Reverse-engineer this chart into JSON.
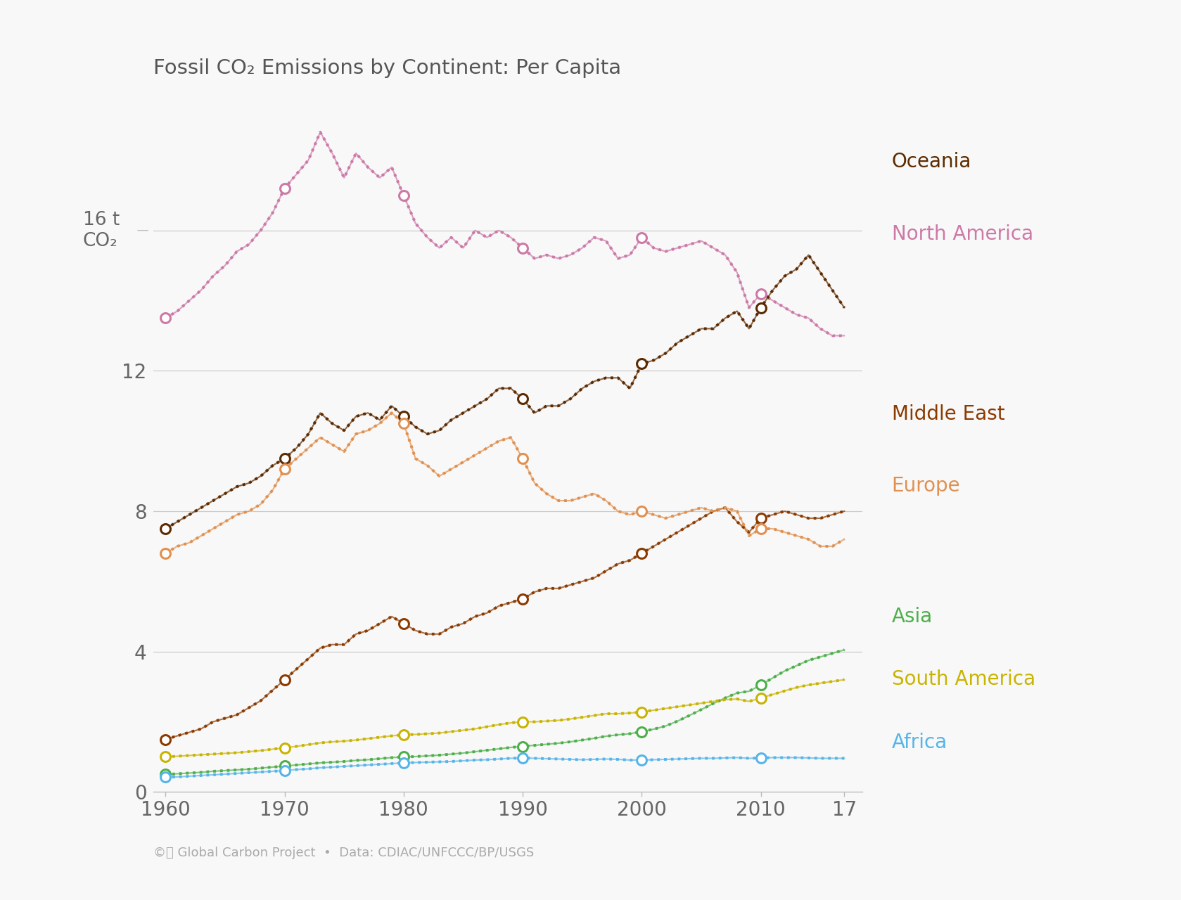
{
  "title": "Fossil CO₂ Emissions by Continent: Per Capita",
  "source": "©ⓘ Global Carbon Project  •  Data: CDIAC/UNFCCC/BP/USGS",
  "years": [
    1960,
    1961,
    1962,
    1963,
    1964,
    1965,
    1966,
    1967,
    1968,
    1969,
    1970,
    1971,
    1972,
    1973,
    1974,
    1975,
    1976,
    1977,
    1978,
    1979,
    1980,
    1981,
    1982,
    1983,
    1984,
    1985,
    1986,
    1987,
    1988,
    1989,
    1990,
    1991,
    1992,
    1993,
    1994,
    1995,
    1996,
    1997,
    1998,
    1999,
    2000,
    2001,
    2002,
    2003,
    2004,
    2005,
    2006,
    2007,
    2008,
    2009,
    2010,
    2011,
    2012,
    2013,
    2014,
    2015,
    2016,
    2017
  ],
  "series": {
    "North America": {
      "color": "#cc79a7",
      "values": [
        13.5,
        13.7,
        14.0,
        14.3,
        14.7,
        15.0,
        15.4,
        15.6,
        16.0,
        16.5,
        17.2,
        17.6,
        18.0,
        18.8,
        18.2,
        17.5,
        18.2,
        17.8,
        17.5,
        17.8,
        17.0,
        16.2,
        15.8,
        15.5,
        15.8,
        15.5,
        16.0,
        15.8,
        16.0,
        15.8,
        15.5,
        15.2,
        15.3,
        15.2,
        15.3,
        15.5,
        15.8,
        15.7,
        15.2,
        15.3,
        15.8,
        15.5,
        15.4,
        15.5,
        15.6,
        15.7,
        15.5,
        15.3,
        14.8,
        13.8,
        14.2,
        14.0,
        13.8,
        13.6,
        13.5,
        13.2,
        13.0,
        13.0
      ]
    },
    "Oceania": {
      "color": "#5c2a00",
      "values": [
        7.5,
        7.7,
        7.9,
        8.1,
        8.3,
        8.5,
        8.7,
        8.8,
        9.0,
        9.3,
        9.5,
        9.8,
        10.2,
        10.8,
        10.5,
        10.3,
        10.7,
        10.8,
        10.6,
        11.0,
        10.7,
        10.4,
        10.2,
        10.3,
        10.6,
        10.8,
        11.0,
        11.2,
        11.5,
        11.5,
        11.2,
        10.8,
        11.0,
        11.0,
        11.2,
        11.5,
        11.7,
        11.8,
        11.8,
        11.5,
        12.2,
        12.3,
        12.5,
        12.8,
        13.0,
        13.2,
        13.2,
        13.5,
        13.7,
        13.2,
        13.8,
        14.3,
        14.7,
        14.9,
        15.3,
        14.8,
        14.3,
        13.8
      ]
    },
    "Middle East": {
      "color": "#8B3A00",
      "values": [
        1.5,
        1.6,
        1.7,
        1.8,
        2.0,
        2.1,
        2.2,
        2.4,
        2.6,
        2.9,
        3.2,
        3.5,
        3.8,
        4.1,
        4.2,
        4.2,
        4.5,
        4.6,
        4.8,
        5.0,
        4.8,
        4.6,
        4.5,
        4.5,
        4.7,
        4.8,
        5.0,
        5.1,
        5.3,
        5.4,
        5.5,
        5.7,
        5.8,
        5.8,
        5.9,
        6.0,
        6.1,
        6.3,
        6.5,
        6.6,
        6.8,
        7.0,
        7.2,
        7.4,
        7.6,
        7.8,
        8.0,
        8.1,
        7.7,
        7.4,
        7.8,
        7.9,
        8.0,
        7.9,
        7.8,
        7.8,
        7.9,
        8.0
      ]
    },
    "Europe": {
      "color": "#e09050",
      "values": [
        6.8,
        7.0,
        7.1,
        7.3,
        7.5,
        7.7,
        7.9,
        8.0,
        8.2,
        8.6,
        9.2,
        9.5,
        9.8,
        10.1,
        9.9,
        9.7,
        10.2,
        10.3,
        10.5,
        10.8,
        10.5,
        9.5,
        9.3,
        9.0,
        9.2,
        9.4,
        9.6,
        9.8,
        10.0,
        10.1,
        9.5,
        8.8,
        8.5,
        8.3,
        8.3,
        8.4,
        8.5,
        8.3,
        8.0,
        7.9,
        8.0,
        7.9,
        7.8,
        7.9,
        8.0,
        8.1,
        8.0,
        8.1,
        8.0,
        7.3,
        7.5,
        7.5,
        7.4,
        7.3,
        7.2,
        7.0,
        7.0,
        7.2
      ]
    },
    "Asia": {
      "color": "#4daf4a",
      "values": [
        0.5,
        0.52,
        0.54,
        0.56,
        0.59,
        0.61,
        0.63,
        0.65,
        0.68,
        0.71,
        0.74,
        0.77,
        0.8,
        0.83,
        0.85,
        0.87,
        0.9,
        0.92,
        0.95,
        0.98,
        1.0,
        1.01,
        1.03,
        1.05,
        1.08,
        1.11,
        1.15,
        1.19,
        1.23,
        1.27,
        1.3,
        1.33,
        1.36,
        1.39,
        1.43,
        1.48,
        1.53,
        1.59,
        1.63,
        1.66,
        1.72,
        1.79,
        1.88,
        2.02,
        2.18,
        2.35,
        2.52,
        2.68,
        2.82,
        2.87,
        3.05,
        3.25,
        3.45,
        3.6,
        3.75,
        3.85,
        3.95,
        4.05
      ]
    },
    "South America": {
      "color": "#c8b400",
      "values": [
        1.0,
        1.02,
        1.04,
        1.06,
        1.08,
        1.1,
        1.12,
        1.15,
        1.18,
        1.22,
        1.26,
        1.3,
        1.35,
        1.4,
        1.43,
        1.45,
        1.48,
        1.52,
        1.56,
        1.6,
        1.63,
        1.64,
        1.66,
        1.68,
        1.72,
        1.76,
        1.8,
        1.86,
        1.92,
        1.97,
        2.0,
        2.0,
        2.02,
        2.04,
        2.08,
        2.13,
        2.18,
        2.23,
        2.23,
        2.25,
        2.28,
        2.33,
        2.38,
        2.43,
        2.48,
        2.53,
        2.58,
        2.63,
        2.65,
        2.58,
        2.68,
        2.78,
        2.88,
        2.98,
        3.05,
        3.1,
        3.15,
        3.2
      ]
    },
    "Africa": {
      "color": "#56b4e9",
      "values": [
        0.42,
        0.43,
        0.45,
        0.47,
        0.49,
        0.51,
        0.53,
        0.55,
        0.57,
        0.59,
        0.61,
        0.64,
        0.66,
        0.69,
        0.71,
        0.73,
        0.75,
        0.77,
        0.79,
        0.81,
        0.83,
        0.84,
        0.85,
        0.86,
        0.87,
        0.89,
        0.91,
        0.92,
        0.94,
        0.96,
        0.97,
        0.96,
        0.95,
        0.94,
        0.93,
        0.92,
        0.93,
        0.94,
        0.93,
        0.91,
        0.91,
        0.92,
        0.93,
        0.94,
        0.95,
        0.96,
        0.96,
        0.97,
        0.98,
        0.96,
        0.97,
        0.98,
        0.98,
        0.98,
        0.97,
        0.96,
        0.96,
        0.96
      ]
    }
  },
  "circle_years": [
    1960,
    1970,
    1980,
    1990,
    2000,
    2010
  ],
  "ylim": [
    0,
    20
  ],
  "yticks": [
    0,
    4,
    8,
    12
  ],
  "xticks": [
    1960,
    1970,
    1980,
    1990,
    2000,
    2010,
    2017
  ],
  "xlim": [
    1959,
    2018.5
  ],
  "background_color": "#f8f8f8",
  "legend_order": [
    "Oceania",
    "North America",
    "Middle East",
    "Europe",
    "Asia",
    "South America",
    "Africa"
  ],
  "legend_colors": {
    "Oceania": "#5c2a00",
    "North America": "#cc79a7",
    "Middle East": "#8B3A00",
    "Europe": "#e09050",
    "Asia": "#4daf4a",
    "South America": "#c8b400",
    "Africa": "#56b4e9"
  }
}
